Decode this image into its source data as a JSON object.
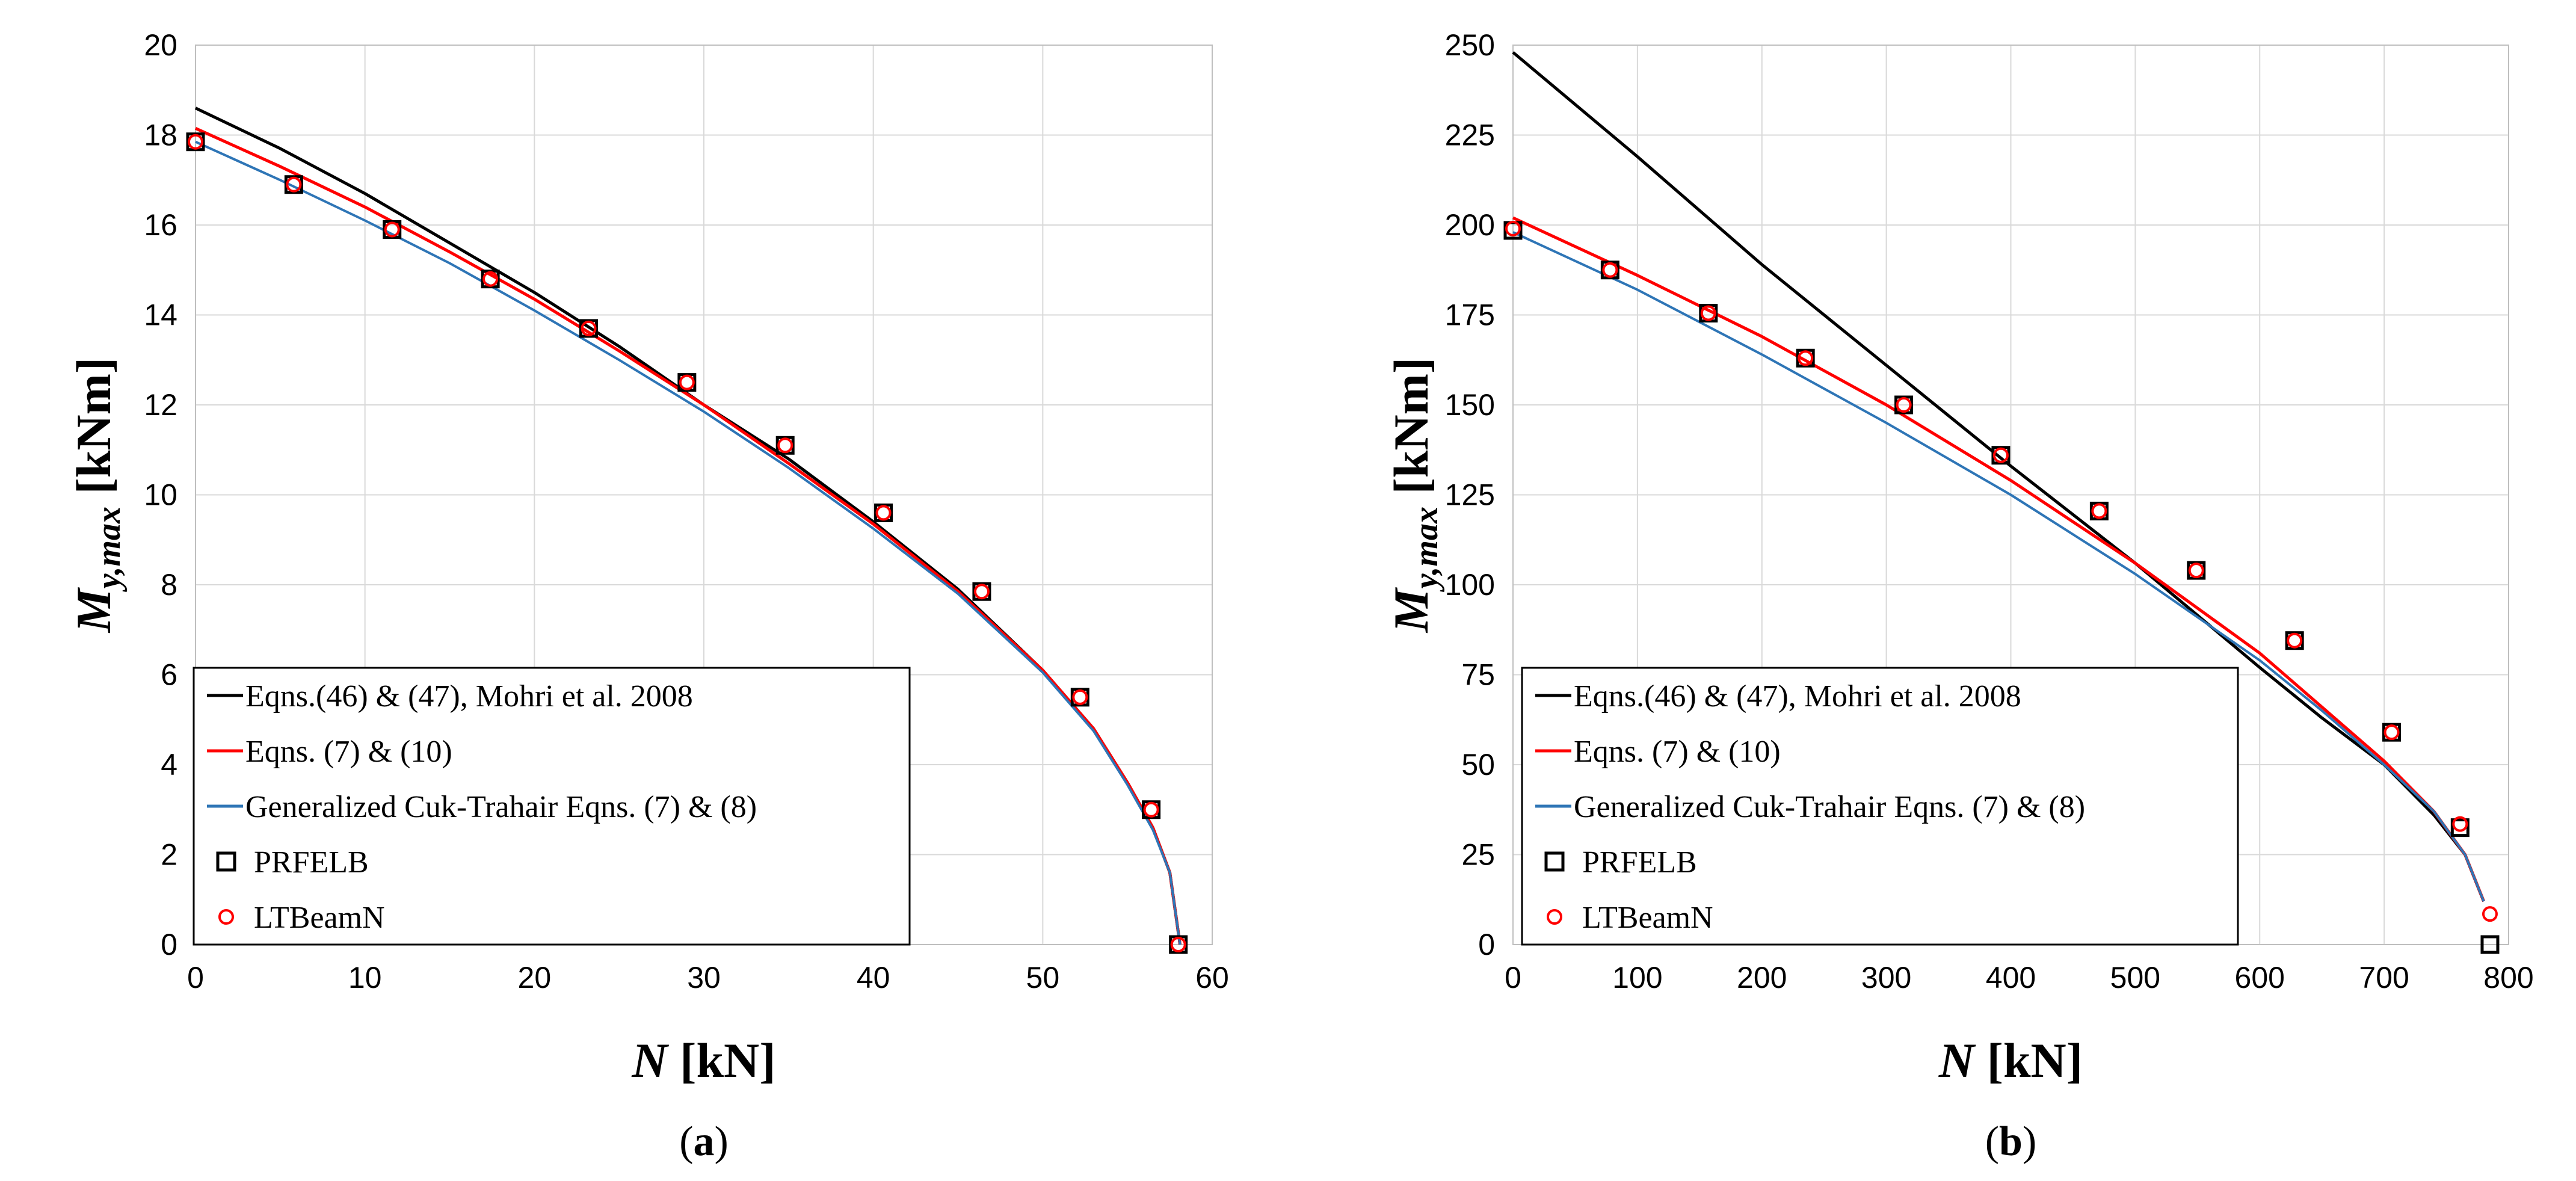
{
  "chart_data": [
    {
      "type": "line",
      "panel_label": "a",
      "caption_open": "(",
      "caption_close": ")",
      "xlabel_var": "N",
      "xlabel_unit": "[kN]",
      "ylabel_var": "M",
      "ylabel_sub": "y,max",
      "ylabel_unit": "[kNm]",
      "xlim": [
        0,
        60
      ],
      "ylim": [
        0,
        20
      ],
      "xticks": [
        0,
        10,
        20,
        30,
        40,
        50,
        60
      ],
      "yticks": [
        0,
        2,
        4,
        6,
        8,
        10,
        12,
        14,
        16,
        18,
        20
      ],
      "grid": true,
      "legend_position": "bottom-left",
      "series": [
        {
          "name": "Eqns.(46) & (47), Mohri et al. 2008",
          "kind": "line",
          "color": "#000000",
          "x": [
            0,
            5,
            10,
            15,
            20,
            25,
            30,
            35,
            40,
            45,
            50,
            53,
            55,
            56.5,
            57.5,
            58.1
          ],
          "y": [
            18.6,
            17.7,
            16.7,
            15.6,
            14.5,
            13.3,
            12.0,
            10.8,
            9.4,
            7.9,
            6.1,
            4.8,
            3.6,
            2.6,
            1.6,
            0
          ]
        },
        {
          "name": "Eqns. (7) & (10)",
          "kind": "line",
          "color": "#ff0000",
          "x": [
            0,
            5,
            10,
            15,
            20,
            25,
            30,
            35,
            40,
            45,
            50,
            53,
            55,
            56.5,
            57.5,
            58.1
          ],
          "y": [
            18.15,
            17.3,
            16.4,
            15.4,
            14.35,
            13.2,
            12.0,
            10.7,
            9.35,
            7.85,
            6.1,
            4.8,
            3.6,
            2.6,
            1.6,
            0
          ]
        },
        {
          "name": "Generalized Cuk-Trahair Eqns. (7) & (8)",
          "kind": "line",
          "color": "#2e75b6",
          "x": [
            0,
            5,
            10,
            15,
            20,
            25,
            30,
            35,
            40,
            45,
            50,
            53,
            55,
            56.5,
            57.5,
            58.1
          ],
          "y": [
            17.85,
            17.0,
            16.1,
            15.15,
            14.1,
            13.0,
            11.85,
            10.6,
            9.25,
            7.8,
            6.05,
            4.75,
            3.55,
            2.55,
            1.6,
            0
          ]
        },
        {
          "name": "PRFELB",
          "kind": "square",
          "color": "#000000",
          "x": [
            0,
            5.8,
            11.6,
            17.4,
            23.2,
            29.0,
            34.8,
            40.6,
            46.4,
            52.2,
            56.4,
            58.0
          ],
          "y": [
            17.85,
            16.9,
            15.9,
            14.8,
            13.7,
            12.5,
            11.1,
            9.6,
            7.85,
            5.5,
            3.0,
            0
          ]
        },
        {
          "name": "LTBeamN",
          "kind": "circle",
          "color": "#ff0000",
          "x": [
            0,
            5.8,
            11.6,
            17.4,
            23.2,
            29.0,
            34.8,
            40.6,
            46.4,
            52.2,
            56.4,
            58.0
          ],
          "y": [
            17.85,
            16.9,
            15.9,
            14.8,
            13.7,
            12.5,
            11.1,
            9.6,
            7.85,
            5.5,
            3.0,
            0
          ]
        }
      ]
    },
    {
      "type": "line",
      "panel_label": "b",
      "caption_open": "(",
      "caption_close": ")",
      "xlabel_var": "N",
      "xlabel_unit": "[kN]",
      "ylabel_var": "M",
      "ylabel_sub": "y,max",
      "ylabel_unit": "[kNm]",
      "xlim": [
        0,
        800
      ],
      "ylim": [
        0,
        250
      ],
      "xticks": [
        0,
        100,
        200,
        300,
        400,
        500,
        600,
        700,
        800
      ],
      "yticks": [
        0,
        25,
        50,
        75,
        100,
        125,
        150,
        175,
        200,
        225,
        250
      ],
      "grid": true,
      "legend_position": "bottom-left",
      "series": [
        {
          "name": "Eqns.(46) & (47), Mohri et al. 2008",
          "kind": "line",
          "color": "#000000",
          "x": [
            0,
            100,
            200,
            300,
            400,
            500,
            600,
            650,
            700,
            740,
            765,
            780
          ],
          "y": [
            248,
            219,
            189,
            161,
            133,
            106,
            77,
            63,
            50,
            36,
            25,
            12
          ]
        },
        {
          "name": "Eqns. (7) & (10)",
          "kind": "line",
          "color": "#ff0000",
          "x": [
            0,
            100,
            200,
            300,
            400,
            500,
            600,
            650,
            700,
            740,
            765,
            780
          ],
          "y": [
            202,
            186,
            169,
            150,
            129,
            106,
            81,
            66,
            51,
            37,
            25,
            12
          ]
        },
        {
          "name": "Generalized Cuk-Trahair Eqns. (7) & (8)",
          "kind": "line",
          "color": "#2e75b6",
          "x": [
            0,
            100,
            200,
            300,
            400,
            500,
            600,
            650,
            700,
            740,
            765,
            780
          ],
          "y": [
            198,
            182,
            164,
            145,
            125,
            103,
            79,
            65,
            50,
            37,
            25,
            12
          ]
        },
        {
          "name": "PRFELB",
          "kind": "square",
          "color": "#000000",
          "x": [
            0,
            78,
            157,
            235,
            314,
            392,
            471,
            549,
            628,
            706,
            761,
            785
          ],
          "y": [
            198.5,
            187.5,
            175.5,
            163,
            150,
            136,
            120.5,
            104,
            84.5,
            59,
            32.5,
            0
          ]
        },
        {
          "name": "LTBeamN",
          "kind": "circle",
          "color": "#ff0000",
          "x": [
            0,
            78,
            157,
            235,
            314,
            392,
            471,
            549,
            628,
            706,
            761,
            785
          ],
          "y": [
            199,
            187.5,
            175.5,
            163,
            150,
            136,
            120.5,
            104,
            84.5,
            59,
            33.5,
            8.5
          ]
        }
      ]
    }
  ]
}
